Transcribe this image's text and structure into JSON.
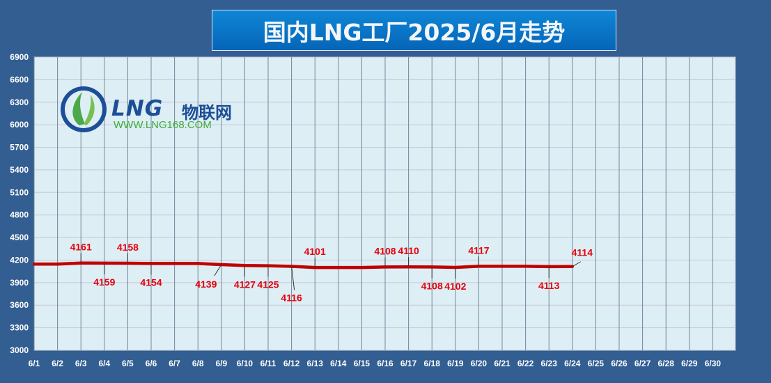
{
  "title": "国内LNG工厂2025/6月走势",
  "logo": {
    "brand": "LNG",
    "brand_cn": "物联网",
    "url": "WWW.LNG168.COM"
  },
  "colors": {
    "background": "#325e91",
    "plot_area": "#ddeef5",
    "line": "#c00000",
    "label": "#e8000b"
  },
  "chart_data": {
    "type": "line",
    "title": "国内LNG工厂2025/6月走势",
    "xlabel": "",
    "ylabel": "",
    "ylim": [
      3000,
      6900
    ],
    "yticks": [
      3000,
      3300,
      3600,
      3900,
      4200,
      4500,
      4800,
      5100,
      5400,
      5700,
      6000,
      6300,
      6600,
      6900
    ],
    "categories": [
      "6/1",
      "6/2",
      "6/3",
      "6/4",
      "6/5",
      "6/6",
      "6/7",
      "6/8",
      "6/9",
      "6/10",
      "6/11",
      "6/12",
      "6/13",
      "6/14",
      "6/15",
      "6/16",
      "6/17",
      "6/18",
      "6/19",
      "6/20",
      "6/21",
      "6/22",
      "6/23",
      "6/24",
      "6/25",
      "6/26",
      "6/27",
      "6/28",
      "6/29",
      "6/30"
    ],
    "values": [
      4147,
      4147,
      4161,
      4159,
      4158,
      4154,
      4154,
      4154,
      4139,
      4127,
      4125,
      4116,
      4101,
      4101,
      4101,
      4108,
      4110,
      4108,
      4102,
      4117,
      4117,
      4117,
      4113,
      4114,
      null,
      null,
      null,
      null,
      null,
      null
    ],
    "data_labels": [
      {
        "index": 2,
        "text": "4161",
        "pos": "above"
      },
      {
        "index": 3,
        "text": "4159",
        "pos": "below"
      },
      {
        "index": 4,
        "text": "4158",
        "pos": "above"
      },
      {
        "index": 5,
        "text": "4154",
        "pos": "below"
      },
      {
        "index": 8,
        "text": "4139",
        "pos": "below-left"
      },
      {
        "index": 9,
        "text": "4127",
        "pos": "below"
      },
      {
        "index": 10,
        "text": "4125",
        "pos": "below"
      },
      {
        "index": 11,
        "text": "4116",
        "pos": "below-far"
      },
      {
        "index": 12,
        "text": "4101",
        "pos": "above"
      },
      {
        "index": 15,
        "text": "4108",
        "pos": "above"
      },
      {
        "index": 16,
        "text": "4110",
        "pos": "above"
      },
      {
        "index": 17,
        "text": "4108",
        "pos": "below"
      },
      {
        "index": 18,
        "text": "4102",
        "pos": "below"
      },
      {
        "index": 19,
        "text": "4117",
        "pos": "above"
      },
      {
        "index": 22,
        "text": "4113",
        "pos": "below"
      },
      {
        "index": 23,
        "text": "4114",
        "pos": "above-right"
      }
    ],
    "grid": true,
    "legend": "none"
  }
}
